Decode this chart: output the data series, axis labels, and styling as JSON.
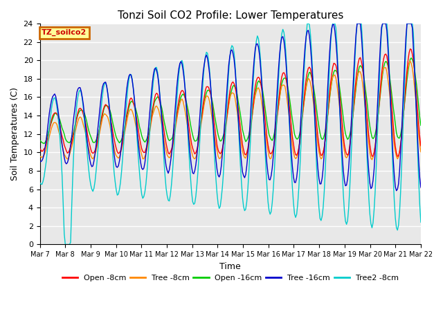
{
  "title": "Tonzi Soil CO2 Profile: Lower Temperatures",
  "xlabel": "Time",
  "ylabel": "Soil Temperatures (C)",
  "ylim": [
    0,
    24
  ],
  "yticks": [
    0,
    2,
    4,
    6,
    8,
    10,
    12,
    14,
    16,
    18,
    20,
    22,
    24
  ],
  "xtick_labels": [
    "Mar 7",
    "Mar 8",
    "Mar 9",
    "Mar 10",
    "Mar 11",
    "Mar 12",
    "Mar 13",
    "Mar 14",
    "Mar 15",
    "Mar 16",
    "Mar 17",
    "Mar 18",
    "Mar 19",
    "Mar 20",
    "Mar 21",
    "Mar 22"
  ],
  "background_color": "#e8e8e8",
  "grid_color": "#ffffff",
  "legend_label": "TZ_soilco2",
  "legend_bg": "#ffff99",
  "legend_border": "#cc6600",
  "series_colors": {
    "open_8cm": "#ff0000",
    "tree_8cm": "#ff8800",
    "open_16cm": "#00cc00",
    "tree_16cm": "#0000cc",
    "tree2_8cm": "#00cccc"
  },
  "series_labels": [
    "Open -8cm",
    "Tree -8cm",
    "Open -16cm",
    "Tree -16cm",
    "Tree2 -8cm"
  ]
}
